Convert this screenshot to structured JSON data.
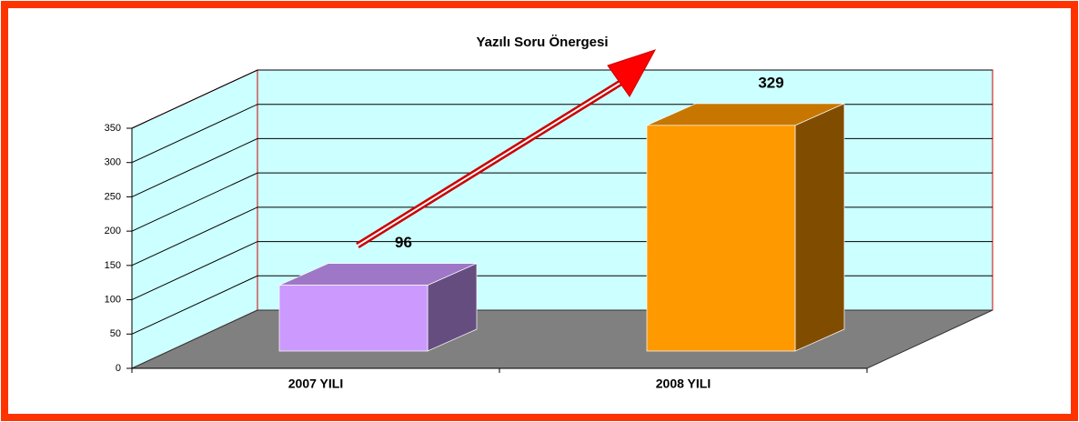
{
  "chart_data": {
    "type": "bar3d",
    "title": "Yazılı Soru Önergesi",
    "categories": [
      "2007 YILI",
      "2008 YILI"
    ],
    "values": [
      96,
      329
    ],
    "colors": [
      "#cc99ff",
      "#ff9900"
    ],
    "ylim": [
      0,
      350
    ],
    "yticks": [
      0,
      50,
      100,
      150,
      200,
      250,
      300,
      350
    ],
    "grid": true
  }
}
